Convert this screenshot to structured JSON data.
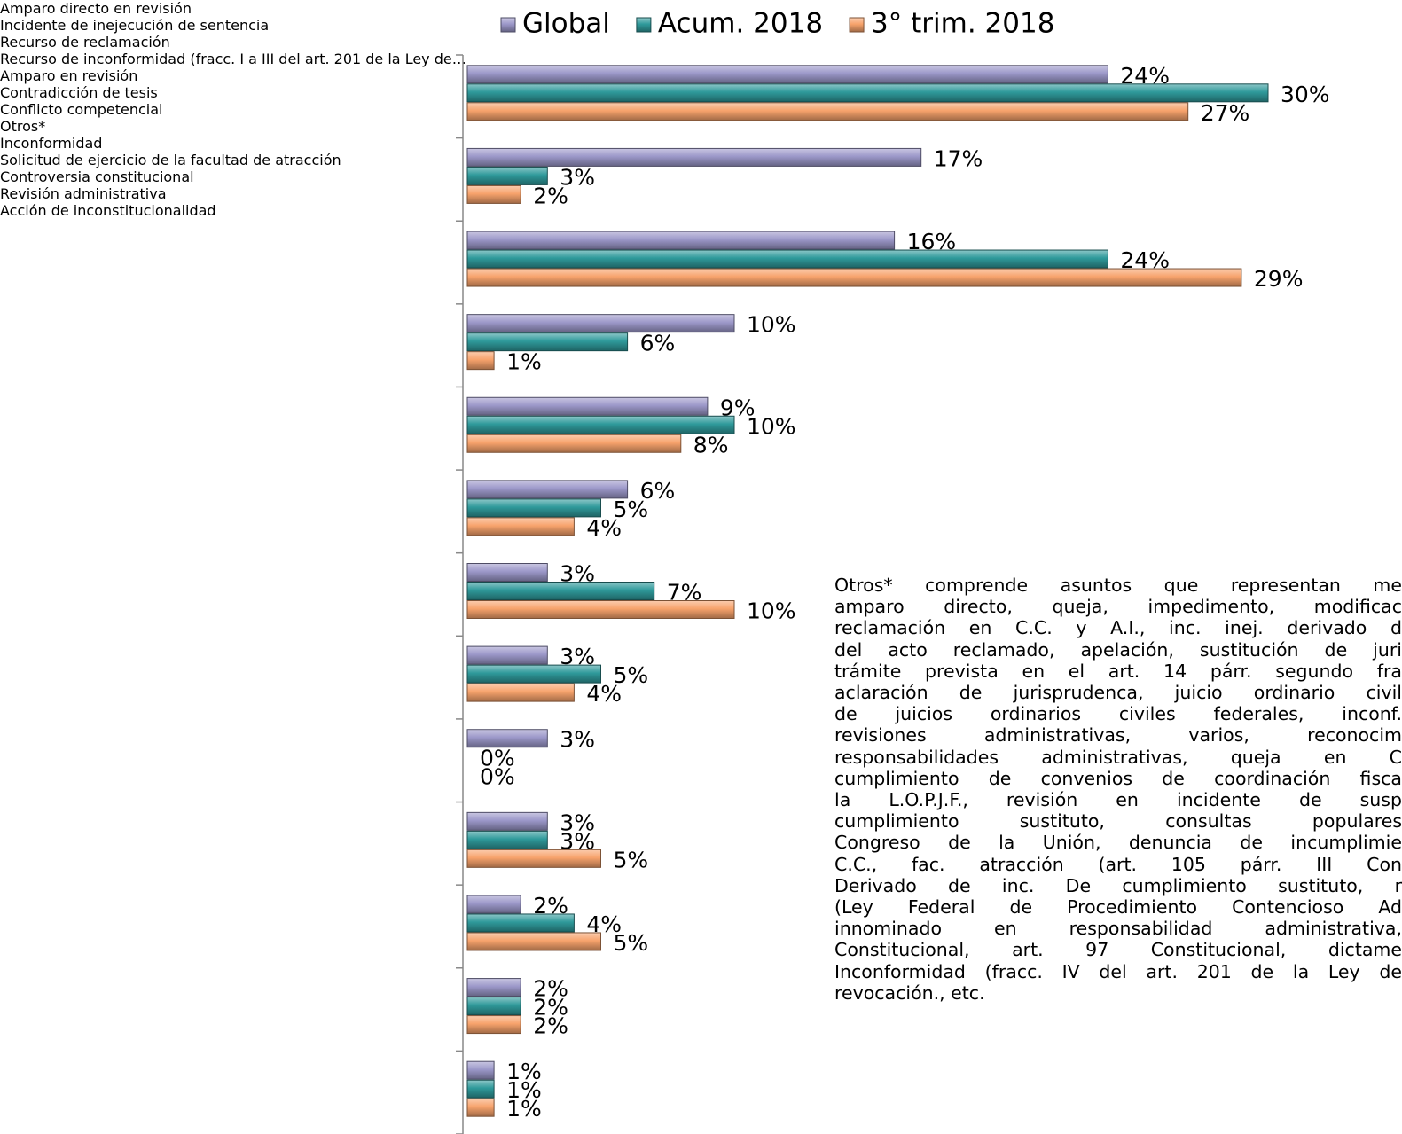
{
  "chart_data": {
    "type": "bar",
    "orientation": "horizontal",
    "categories": [
      "Amparo directo en revisión",
      "Incidente de inejecución de\nsentencia",
      "Recurso de reclamación",
      "Recurso de inconformidad (fracc.\nI a III del art. 201 de la Ley de…",
      "Amparo en revisión",
      "Contradicción de tesis",
      "Conflicto competencial",
      "Otros*",
      "Inconformidad",
      "Solicitud de ejercicio de la\nfacultad de atracción",
      "Controversia constitucional",
      "Revisión administrativa",
      "Acción de inconstitucionalidad"
    ],
    "series": [
      {
        "name": "Global",
        "color": "#9c98c9",
        "values": [
          24,
          17,
          16,
          10,
          9,
          6,
          3,
          3,
          3,
          3,
          2,
          2,
          1
        ],
        "value_labels": [
          "24%",
          "17%",
          "16%",
          "10%",
          "9%",
          "6%",
          "3%",
          "3%",
          "3%",
          "3%",
          "2%",
          "2%",
          "1%"
        ]
      },
      {
        "name": "Acum. 2018",
        "color": "#2f9a9b",
        "values": [
          30,
          3,
          24,
          6,
          10,
          5,
          7,
          5,
          0,
          3,
          4,
          2,
          1
        ],
        "value_labels": [
          "30%",
          "3%",
          "24%",
          "6%",
          "10%",
          "5%",
          "7%",
          "5%",
          "0%",
          "3%",
          "4%",
          "2%",
          "1%"
        ]
      },
      {
        "name": "3° trim. 2018",
        "color": "#f7a36c",
        "values": [
          27,
          2,
          29,
          1,
          8,
          4,
          10,
          4,
          0,
          5,
          5,
          2,
          1
        ],
        "value_labels": [
          "27%",
          "2%",
          "29%",
          "1%",
          "8%",
          "4%",
          "10%",
          "4%",
          "0%",
          "5%",
          "5%",
          "2%",
          "1%"
        ]
      }
    ],
    "legend": "top",
    "note": [
      "Otros* comprende asuntos que representan me",
      "amparo directo, queja, impedimento, modificac",
      "reclamación en C.C. y A.I., inc. inej. derivado d",
      "del acto reclamado, apelación, sustitución de juri",
      "trámite prevista en el art. 14 párr. segundo fra",
      "aclaración de jurisprudenca, juicio ordinario civil",
      "de juicios ordinarios civiles federales, inconf.",
      "revisiones administrativas, varios, reconocim",
      "responsabilidades administrativas, queja en C",
      "cumplimiento de convenios de coordinación fisca",
      "la L.O.P.J.F., revisión en incidente de susp",
      "cumplimiento sustituto, consultas populares",
      "Congreso de la Unión, denuncia de incumplimie",
      "C.C., fac. atracción (art. 105 párr. III Con",
      "Derivado de inc. De cumplimiento sustituto, r",
      "(Ley Federal de Procedimiento Contencioso Ad",
      "innominado en responsabilidad administrativa,",
      "Constitucional, art. 97 Constitucional, dictame",
      "Inconformidad (fracc. IV del art. 201 de la Ley de",
      "revocación., etc."
    ]
  }
}
